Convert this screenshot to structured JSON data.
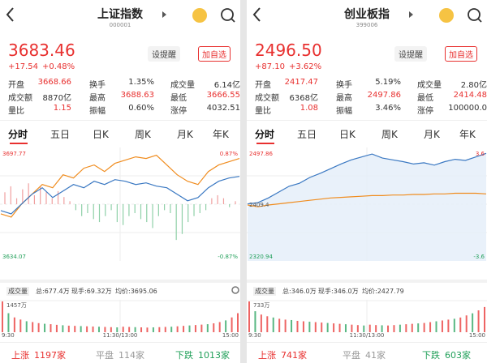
{
  "panels": [
    {
      "title": "上证指数",
      "code": "000001",
      "price": "3683.46",
      "change": "+17.54",
      "change_pct": "+0.48%",
      "buttons": [
        "设提醒",
        "加自选"
      ],
      "stats": [
        [
          "开盘",
          "3668.66",
          "换手",
          "1.35%",
          "成交量",
          "6.14亿"
        ],
        [
          "成交额",
          "8870亿",
          "最高",
          "3688.63",
          "最低",
          "3666.55"
        ],
        [
          "量比",
          "1.15",
          "振幅",
          "0.60%",
          "涨停",
          "4032.51"
        ]
      ],
      "tabs": [
        "分时",
        "五日",
        "日K",
        "周K",
        "月K",
        "年K"
      ],
      "chart": {
        "ylim": [
          3634.07,
          3697.77
        ],
        "pct": [
          {
            "value": 0.87,
            "label": "0.87%"
          },
          {
            "value": -0.87,
            "label": "-0.87%"
          }
        ],
        "series": [
          {
            "color": "#f08c1e",
            "values": [
              3660,
              3658,
              3666,
              3672,
              3678,
              3676,
              3684,
              3682,
              3688,
              3690,
              3686,
              3691,
              3693,
              3695,
              3694,
              3696,
              3690,
              3684,
              3680,
              3678,
              3686,
              3690,
              3692,
              3694
            ]
          },
          {
            "color": "#3a78c2",
            "values": [
              3662,
              3660,
              3666,
              3672,
              3676,
              3670,
              3674,
              3678,
              3676,
              3680,
              3678,
              3681,
              3680,
              3678,
              3679,
              3677,
              3676,
              3672,
              3668,
              3670,
              3676,
              3680,
              3682,
              3683
            ]
          }
        ],
        "bars": [
          0.2,
          0.3,
          0.1,
          0.25,
          0.35,
          0.15,
          0.3,
          0.2,
          0.1,
          0.22,
          0.12,
          0.05,
          -0.1,
          -0.2,
          -0.15,
          -0.25,
          -0.3,
          -0.2,
          -0.1,
          -0.3,
          -0.35,
          -0.2,
          -0.15,
          -0.25,
          -0.3,
          -0.4,
          -0.2,
          -0.1,
          -0.15,
          -0.6,
          -0.5,
          -0.3,
          -0.2,
          -0.15,
          -0.1,
          0.1,
          0.15,
          0.1,
          -0.05,
          0.05
        ]
      },
      "volume_header": [
        "成交量",
        "总:677.4万",
        "现手:69.32万",
        "均价:3695.06"
      ],
      "volume": {
        "max": {
          "value": 1457,
          "label": "1457万"
        },
        "values": [
          1457,
          900,
          700,
          600,
          520,
          480,
          430,
          400,
          380,
          350,
          330,
          310,
          300,
          290,
          280,
          270,
          260,
          250,
          240,
          230,
          260,
          250,
          240,
          230,
          220,
          230,
          240,
          250,
          260,
          280,
          300,
          320,
          340,
          360,
          380,
          420,
          480,
          560,
          700,
          900
        ]
      },
      "times": [
        "9:30",
        "11:30/13:00",
        "15:00"
      ],
      "footer": [
        [
          "上涨",
          "1197家"
        ],
        [
          "平盘",
          "114家"
        ],
        [
          "下跌",
          "1013家"
        ]
      ]
    },
    {
      "title": "创业板指",
      "code": "399006",
      "price": "2496.50",
      "change": "+87.10",
      "change_pct": "+3.62%",
      "buttons": [
        "设提醒",
        "加自选"
      ],
      "stats": [
        [
          "开盘",
          "2417.47",
          "换手",
          "5.19%",
          "成交量",
          "2.80亿"
        ],
        [
          "成交额",
          "6368亿",
          "最高",
          "2497.86",
          "最低",
          "2414.48"
        ],
        [
          "量比",
          "1.08",
          "振幅",
          "3.46%",
          "涨停",
          "100000.0"
        ]
      ],
      "tabs": [
        "分时",
        "五日",
        "日K",
        "周K",
        "月K",
        "年K"
      ],
      "chart": {
        "ylim": [
          2320.94,
          2497.86
        ],
        "mid": 2409.4,
        "pct": [
          3.6,
          -3.6
        ],
        "series": [
          {
            "color": "#3a78c2",
            "values": [
              2410,
              2412,
              2420,
              2430,
              2440,
              2445,
              2455,
              2462,
              2470,
              2478,
              2485,
              2490,
              2495,
              2488,
              2485,
              2482,
              2478,
              2480,
              2476,
              2482,
              2486,
              2484,
              2490,
              2496
            ]
          },
          {
            "color": "#f08c1e",
            "values": [
              2408,
              2405,
              2408,
              2410,
              2412,
              2414,
              2416,
              2418,
              2420,
              2421,
              2422,
              2423,
              2424,
              2424,
              2425,
              2425,
              2426,
              2426,
              2427,
              2427,
              2428,
              2428,
              2428,
              2427
            ]
          }
        ]
      },
      "volume_header": [
        "成交量",
        "总:346.0万",
        "现手:346.0万",
        "均价:2427.79"
      ],
      "volume": {
        "max": {
          "value": 733,
          "label": "733万"
        },
        "values": [
          733,
          500,
          420,
          380,
          350,
          320,
          300,
          290,
          270,
          260,
          250,
          240,
          230,
          220,
          210,
          200,
          190,
          180,
          170,
          160,
          180,
          170,
          165,
          160,
          170,
          180,
          190,
          200,
          210,
          220,
          240,
          260,
          280,
          300,
          320,
          350,
          400,
          450,
          520,
          600
        ]
      },
      "times": [
        "9:30",
        "11:30/13:00",
        "15:00"
      ],
      "footer": [
        [
          "上涨",
          "741家"
        ],
        [
          "平盘",
          "41家"
        ],
        [
          "下跌",
          "603家"
        ]
      ]
    }
  ]
}
